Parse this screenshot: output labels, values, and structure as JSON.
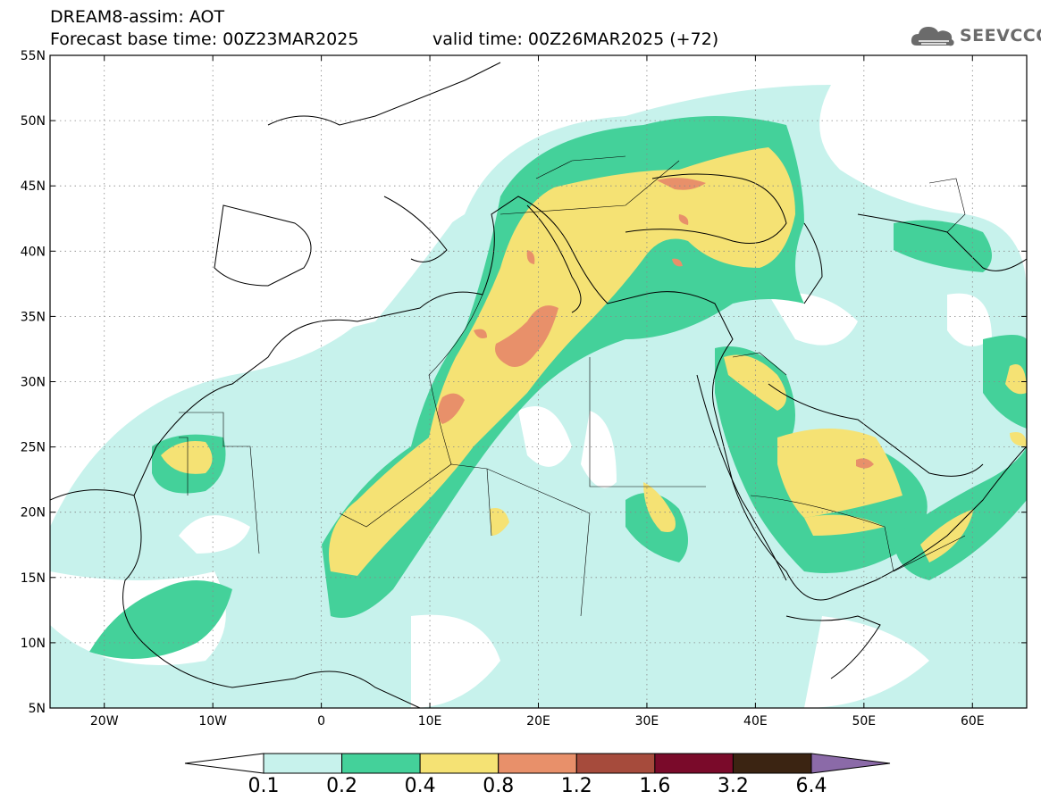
{
  "title": {
    "line1": "DREAM8-assim: AOT",
    "line2": "Forecast base time: 00Z23MAR2025",
    "valid": "valid time: 00Z26MAR2025 (+72)"
  },
  "logo": {
    "text": "SEEVCCC",
    "icon": "cloud-icon"
  },
  "axes": {
    "lat_labels": [
      "55N",
      "50N",
      "45N",
      "40N",
      "35N",
      "30N",
      "25N",
      "20N",
      "15N",
      "10N",
      "5N"
    ],
    "lon_labels": [
      "20W",
      "10W",
      "0",
      "10E",
      "20E",
      "30E",
      "40E",
      "50E",
      "60E"
    ],
    "lon_range": [
      -25,
      65
    ],
    "lat_range": [
      5,
      55
    ]
  },
  "colorbar": {
    "labels": [
      "0.1",
      "0.2",
      "0.4",
      "0.8",
      "1.2",
      "1.6",
      "3.2",
      "6.4"
    ],
    "colors": [
      "#ffffff",
      "#c7f2ec",
      "#44d19a",
      "#f5e274",
      "#e8906a",
      "#a64b3c",
      "#7a0a2a",
      "#3b2412",
      "#8b6aa8"
    ]
  },
  "aot_colors": {
    "0.1": "#c7f2ec",
    "0.2": "#44d19a",
    "0.4": "#f5e274",
    "0.8": "#e8906a"
  }
}
